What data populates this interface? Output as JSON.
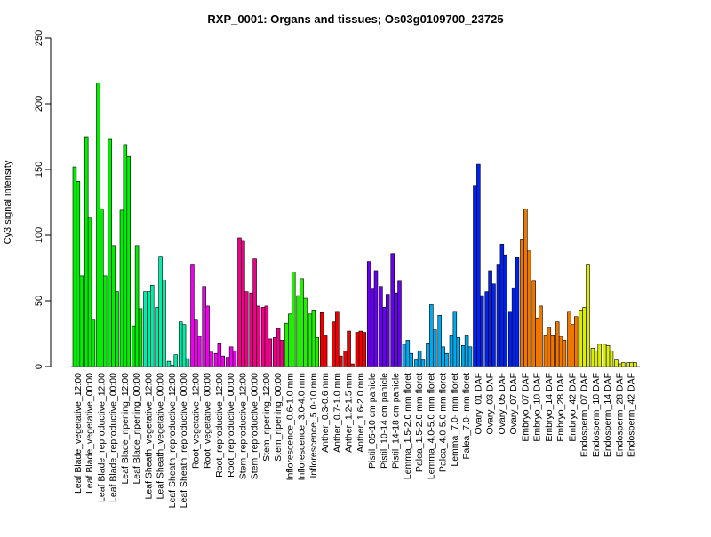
{
  "chart_data": {
    "type": "bar",
    "title": "RXP_0001: Organs and tissues; Os03g0109700_23725",
    "xlabel": "",
    "ylabel": "Cy3 signal intensity",
    "ylim": [
      0,
      250
    ],
    "yticks": [
      0,
      50,
      100,
      150,
      200,
      250
    ],
    "grid": false,
    "bars_per_category": 3,
    "categories": [
      "Leaf Blade_vegetative_12:00",
      "Leaf Blade_vegetative_00:00",
      "Leaf Blade_reproductive_12:00",
      "Leaf Blade_reproductive_00:00",
      "Leaf Blade_ripening_12:00",
      "Leaf Blade_ripening_00:00",
      "Leaf Sheath_vegetative_12:00",
      "Leaf Sheath_vegetative_00:00",
      "Leaf Sheath_reproductive_12:00",
      "Leaf Sheath_reproductive_00:00",
      "Root_vegetative_12:00",
      "Root_vegetative_00:00",
      "Root_reproductive_12:00",
      "Root_reproductive_00:00",
      "Stem_reproductive_12:00",
      "Stem_reproductive_00:00",
      "Stem_ripening_12:00",
      "Stem_ripening_00:00",
      "Inflorescence_0.6-1.0 mm",
      "Inflorescence_3.0-4.0 mm",
      "Inflorescence_5.0-10 mm",
      "Anther_0.3-0.6 mm",
      "Anther_0.7-1.0 mm",
      "Anther_1.2-1.5 mm",
      "Anther_1.6-2.0 mm",
      "Pistil_05-10 cm panicle",
      "Pistil_10-14 cm panicle",
      "Pistil_14-18 cm panicle",
      "Lemma_1.5-2.0 mm floret",
      "Palea_1.5-2.0 mm floret",
      "Lemma_4.0-5.0 mm floret",
      "Palea_4.0-5.0 mm floret",
      "Lemma_7.0- mm floret",
      "Palea_7.0- mm floret",
      "Ovary_01 DAF",
      "Ovary_03 DAF",
      "Ovary_05 DAF",
      "Ovary_07 DAF",
      "Embryo_07 DAF",
      "Embryo_10 DAF",
      "Embryo_14 DAF",
      "Embryo_28 DAF",
      "Embryo_42 DAF",
      "Endosperm_07 DAF",
      "Endosperm_10 DAF",
      "Endosperm_14 DAF",
      "Endosperm_28 DAF",
      "Endosperm_42 DAF"
    ],
    "values": [
      [
        152,
        141,
        69
      ],
      [
        175,
        113,
        36
      ],
      [
        216,
        120,
        69
      ],
      [
        173,
        92,
        57
      ],
      [
        119,
        169,
        160
      ],
      [
        31,
        92,
        44
      ],
      [
        57,
        57,
        62
      ],
      [
        45,
        84,
        66
      ],
      [
        4,
        1,
        9
      ],
      [
        34,
        32,
        6
      ],
      [
        78,
        36,
        23
      ],
      [
        61,
        46,
        11
      ],
      [
        10,
        18,
        8
      ],
      [
        7,
        15,
        12
      ],
      [
        98,
        96,
        57
      ],
      [
        56,
        82,
        46
      ],
      [
        45,
        46,
        21
      ],
      [
        22,
        29,
        20
      ],
      [
        33,
        40,
        72
      ],
      [
        54,
        67,
        52
      ],
      [
        40,
        43,
        22
      ],
      [
        41,
        24,
        0
      ],
      [
        34,
        42,
        8
      ],
      [
        12,
        27,
        2
      ],
      [
        26,
        27,
        26
      ],
      [
        80,
        59,
        73
      ],
      [
        61,
        45,
        55
      ],
      [
        86,
        56,
        65
      ],
      [
        17,
        20,
        10
      ],
      [
        5,
        12,
        5
      ],
      [
        18,
        47,
        28
      ],
      [
        39,
        15,
        10
      ],
      [
        24,
        42,
        22
      ],
      [
        16,
        24,
        15
      ],
      [
        138,
        154,
        54
      ],
      [
        57,
        73,
        63
      ],
      [
        78,
        93,
        85
      ],
      [
        42,
        60,
        83
      ],
      [
        97,
        120,
        88
      ],
      [
        65,
        37,
        46
      ],
      [
        24,
        30,
        24
      ],
      [
        34,
        23,
        20
      ],
      [
        42,
        32,
        38
      ],
      [
        43,
        45,
        78
      ],
      [
        14,
        12,
        17
      ],
      [
        17,
        16,
        12
      ],
      [
        5,
        2,
        3
      ],
      [
        3,
        3,
        3
      ]
    ],
    "colors": [
      "#00ee00",
      "#00ee00",
      "#00ee00",
      "#00ee00",
      "#00ee00",
      "#00ee00",
      "#00eeaa",
      "#00eeaa",
      "#00eeaa",
      "#00eeaa",
      "#ee00ee",
      "#ee00ee",
      "#ee00ee",
      "#ee00ee",
      "#ee0088",
      "#ee0088",
      "#ee0088",
      "#ee0088",
      "#22ee00",
      "#22ee00",
      "#22ee00",
      "#ee0000",
      "#ee0000",
      "#ee0000",
      "#ee0000",
      "#6600ee",
      "#6600ee",
      "#6600ee",
      "#00aaee",
      "#00aaee",
      "#00aaee",
      "#00aaee",
      "#00aaee",
      "#00aaee",
      "#0022ee",
      "#0022ee",
      "#0022ee",
      "#0022ee",
      "#ee7700",
      "#ee7700",
      "#ee7700",
      "#ee7700",
      "#ee7700",
      "#ddee00",
      "#ddee00",
      "#ddee00",
      "#ddee00",
      "#ddee00"
    ]
  }
}
